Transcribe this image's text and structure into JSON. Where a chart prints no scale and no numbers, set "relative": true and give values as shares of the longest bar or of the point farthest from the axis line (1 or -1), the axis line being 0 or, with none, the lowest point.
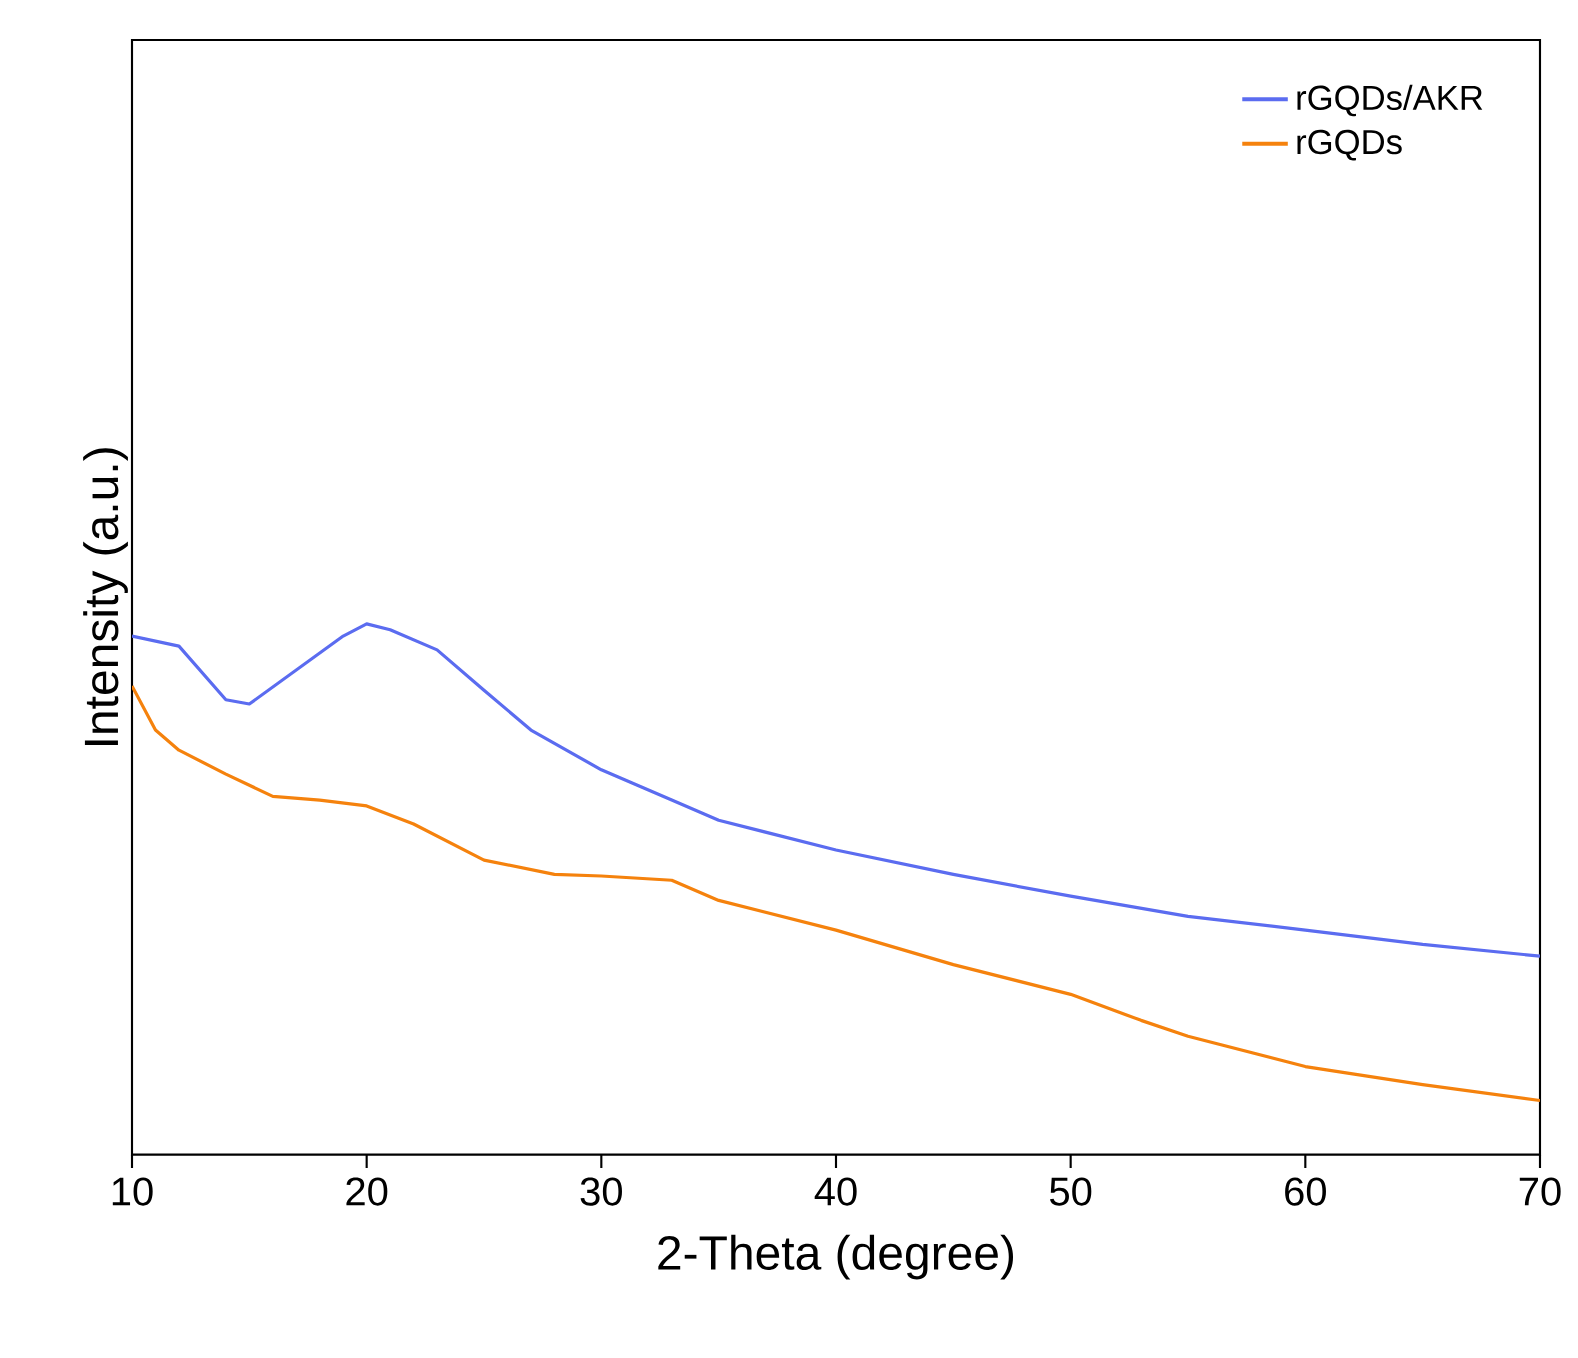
{
  "chart_data": {
    "type": "line",
    "relative": true,
    "xlabel": "2-Theta (degree)",
    "ylabel": "Intensity (a.u.)",
    "xlim": [
      10,
      70
    ],
    "xticks": [
      10,
      20,
      30,
      40,
      50,
      60,
      70
    ],
    "legend": "top right",
    "marker": "none",
    "line_style": "solid",
    "series": [
      {
        "name": "rGQDs/AKR",
        "color": "#5b6cf0",
        "x": [
          10,
          12,
          14,
          15,
          17,
          19,
          20,
          21,
          23,
          25,
          27,
          30,
          33,
          35,
          40,
          45,
          50,
          55,
          60,
          65,
          70
        ],
        "values": [
          0.977,
          0.958,
          0.857,
          0.849,
          0.913,
          0.977,
          1,
          0.989,
          0.951,
          0.875,
          0.8,
          0.725,
          0.668,
          0.63,
          0.574,
          0.528,
          0.487,
          0.449,
          0.423,
          0.396,
          0.374
        ]
      },
      {
        "name": "rGQDs",
        "color": "#f5820d",
        "x": [
          10,
          11,
          12,
          14,
          16,
          18,
          20,
          22,
          25,
          28,
          30,
          33,
          35,
          40,
          45,
          50,
          53,
          55,
          60,
          65,
          70
        ],
        "values": [
          0.883,
          0.8,
          0.762,
          0.717,
          0.675,
          0.668,
          0.657,
          0.623,
          0.555,
          0.528,
          0.525,
          0.517,
          0.479,
          0.423,
          0.358,
          0.302,
          0.253,
          0.223,
          0.166,
          0.132,
          0.102
        ]
      }
    ]
  }
}
